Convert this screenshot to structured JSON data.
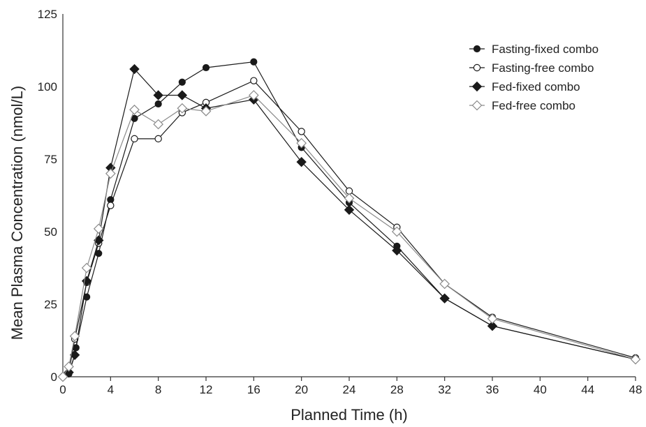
{
  "chart_data": {
    "type": "line",
    "title": "",
    "xlabel": "Planned Time (h)",
    "ylabel": "Mean Plasma Concentration (nmol/L)",
    "xlim": [
      0,
      48
    ],
    "ylim": [
      0,
      125
    ],
    "xticks": [
      0,
      4,
      8,
      12,
      16,
      20,
      24,
      28,
      32,
      36,
      40,
      44,
      48
    ],
    "yticks": [
      0,
      25,
      50,
      75,
      100,
      125
    ],
    "grid": false,
    "legend_position": "top-right",
    "series": [
      {
        "name": "Fasting-fixed combo",
        "marker": "filled-circle",
        "color": "#1a1a1a",
        "x": [
          0,
          0.5,
          1,
          1.1,
          2,
          3,
          4,
          6,
          8,
          10,
          12,
          16,
          20,
          24,
          28,
          32,
          36,
          48
        ],
        "y": [
          0,
          1,
          7.5,
          10,
          27.5,
          42.5,
          61,
          89,
          94,
          101.5,
          106.5,
          108.5,
          79,
          60,
          45,
          27,
          17.5,
          6
        ]
      },
      {
        "name": "Fasting-free combo",
        "marker": "open-circle",
        "color": "#1a1a1a",
        "x": [
          0,
          0.5,
          1,
          2,
          3,
          4,
          6,
          8,
          10,
          12,
          16,
          20,
          24,
          28,
          32,
          36,
          48
        ],
        "y": [
          0,
          1.5,
          13,
          32.5,
          46,
          59,
          82,
          82,
          91,
          94.5,
          102,
          84.5,
          64,
          51.5,
          32,
          20.5,
          6.5
        ]
      },
      {
        "name": "Fed-fixed combo",
        "marker": "filled-diamond",
        "color": "#1a1a1a",
        "x": [
          0,
          0.5,
          1,
          2,
          3,
          4,
          6,
          8,
          10,
          12,
          16,
          20,
          24,
          28,
          32,
          36,
          48
        ],
        "y": [
          0,
          1.5,
          7.5,
          33,
          47,
          72,
          106,
          97,
          97,
          92.5,
          95.5,
          74,
          57.5,
          43.5,
          27,
          17.5,
          6
        ]
      },
      {
        "name": "Fed-free combo",
        "marker": "open-diamond",
        "color": "#8a8a8a",
        "x": [
          0,
          0.5,
          1,
          2,
          3,
          4,
          6,
          8,
          10,
          12,
          16,
          20,
          24,
          28,
          32,
          36,
          48
        ],
        "y": [
          0,
          3.5,
          14,
          37.5,
          51,
          70,
          92,
          87,
          92.5,
          91.5,
          97,
          80.5,
          61.5,
          50,
          32,
          20,
          6
        ]
      }
    ]
  }
}
